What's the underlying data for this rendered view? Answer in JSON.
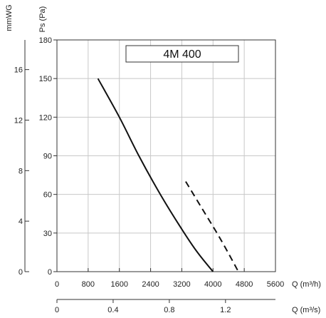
{
  "chart_data": {
    "type": "line",
    "title": "4M 400",
    "x_axes": [
      {
        "label": "Q (m³/h)",
        "range": [
          0,
          5600
        ],
        "ticks": [
          0,
          800,
          1600,
          2400,
          3200,
          4000,
          4800,
          5600
        ],
        "tick_labels": [
          "0",
          "800",
          "1600",
          "2400",
          "3200",
          "4000",
          "4800",
          "5600"
        ]
      },
      {
        "label": "Q (m³/s)",
        "range": [
          0,
          1.5556
        ],
        "ticks": [
          0,
          0.4,
          0.8,
          1.2
        ],
        "tick_labels": [
          "0",
          "0.4",
          "0.8",
          "1.2"
        ]
      }
    ],
    "y_axes": [
      {
        "label": "Ps (Pa)",
        "range": [
          0,
          180
        ],
        "ticks": [
          0,
          30,
          60,
          90,
          120,
          150,
          180
        ],
        "tick_labels": [
          "0",
          "30",
          "60",
          "90",
          "120",
          "150",
          "180"
        ]
      },
      {
        "label": "mmWG",
        "range": [
          0,
          18.35
        ],
        "ticks": [
          0,
          4,
          8,
          12,
          16
        ],
        "tick_labels": [
          "0",
          "4",
          "8",
          "12",
          "16"
        ]
      }
    ],
    "grid": true,
    "series": [
      {
        "style": "solid",
        "points": [
          [
            1050,
            150
          ],
          [
            1600,
            120
          ],
          [
            2100,
            90
          ],
          [
            2650,
            60
          ],
          [
            3200,
            33
          ],
          [
            3600,
            15
          ],
          [
            4000,
            0
          ]
        ]
      },
      {
        "style": "dashed",
        "points": [
          [
            3300,
            70
          ],
          [
            3700,
            50
          ],
          [
            4100,
            30
          ],
          [
            4400,
            14
          ],
          [
            4650,
            0
          ]
        ]
      }
    ]
  }
}
